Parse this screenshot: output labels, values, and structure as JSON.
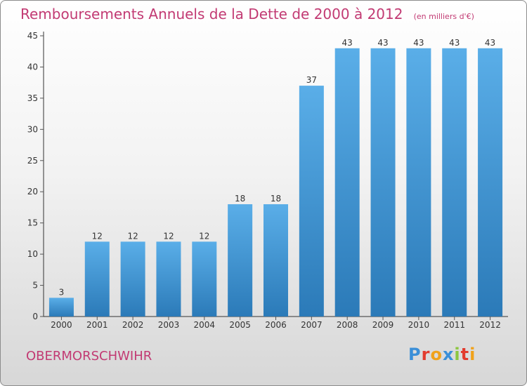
{
  "header": {
    "title": "Remboursements Annuels de la Dette de 2000 à 2012",
    "subtitle": "(en milliers d'€)"
  },
  "footer": {
    "city": "OBERMORSCHWIHR",
    "logo_text": "Proxiti"
  },
  "colors": {
    "title": "#c23a73",
    "bar_top": "#5aaee8",
    "bar_bottom": "#2b7ab8",
    "axis": "#333333",
    "grid_tick": "#555555"
  },
  "chart_data": {
    "type": "bar",
    "title": "Remboursements Annuels de la Dette de 2000 à 2012",
    "subtitle": "(en milliers d'€)",
    "xlabel": "",
    "ylabel": "",
    "categories": [
      "2000",
      "2001",
      "2002",
      "2003",
      "2004",
      "2005",
      "2006",
      "2007",
      "2008",
      "2009",
      "2010",
      "2011",
      "2012"
    ],
    "values": [
      3,
      12,
      12,
      12,
      12,
      18,
      18,
      37,
      43,
      43,
      43,
      43,
      43
    ],
    "data_labels": [
      "3",
      "12",
      "12",
      "12",
      "12",
      "18",
      "18",
      "37",
      "43",
      "43",
      "43",
      "43",
      "43"
    ],
    "ylim": [
      0,
      45
    ],
    "yticks": [
      0,
      5,
      10,
      15,
      20,
      25,
      30,
      35,
      40,
      45
    ],
    "ytick_labels": [
      "0",
      "5",
      "10",
      "15",
      "20",
      "25",
      "30",
      "35",
      "40",
      "45"
    ],
    "grid": false,
    "legend": "none"
  }
}
